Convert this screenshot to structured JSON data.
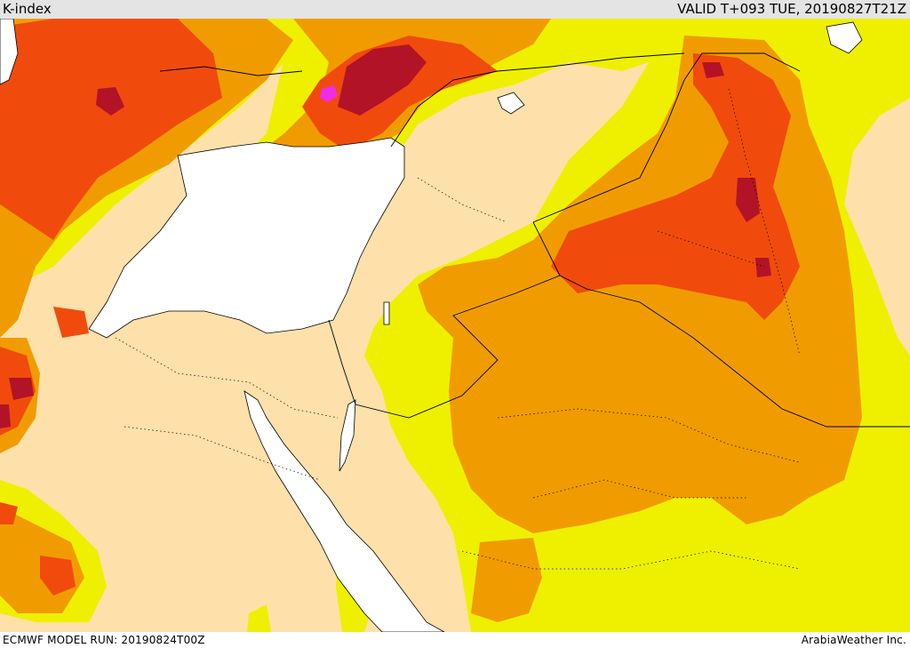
{
  "header": {
    "title": "K-index",
    "valid": "VALID T+093 TUE, 20190827T21Z"
  },
  "footer": {
    "model_run": "ECMWF MODEL RUN: 20190824T00Z",
    "credit": "ArabiaWeather Inc."
  },
  "colors": {
    "background_land": "#fde0aa",
    "water": "#ffffff",
    "level_1_yellow": "#eef000",
    "level_2_orange": "#f09c00",
    "level_3_red_orange": "#f04b0d",
    "level_4_dark_red": "#b31326",
    "level_5_magenta": "#ee2de8",
    "coastline": "#000000"
  }
}
